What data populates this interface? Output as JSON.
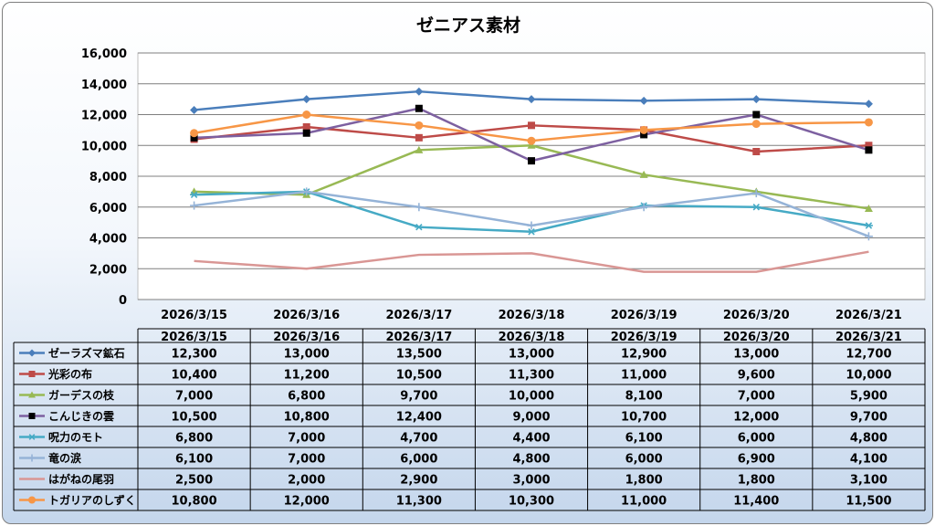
{
  "chart_data": {
    "type": "line",
    "title": "ゼニアス素材",
    "categories": [
      "2026/3/15",
      "2026/3/16",
      "2026/3/17",
      "2026/3/18",
      "2026/3/19",
      "2026/3/20",
      "2026/3/21"
    ],
    "ylim": [
      0,
      16000
    ],
    "yticks": [
      0,
      2000,
      4000,
      6000,
      8000,
      10000,
      12000,
      14000,
      16000
    ],
    "ytick_labels": [
      "0",
      "2,000",
      "4,000",
      "6,000",
      "8,000",
      "10,000",
      "12,000",
      "14,000",
      "16,000"
    ],
    "grid": true,
    "legend": "data-table",
    "series": [
      {
        "name": "ゼーラズマ鉱石",
        "color": "#4a7ebb",
        "marker": "diamond",
        "values": [
          12300,
          13000,
          13500,
          13000,
          12900,
          13000,
          12700
        ],
        "labels": [
          "12,300",
          "13,000",
          "13,500",
          "13,000",
          "12,900",
          "13,000",
          "12,700"
        ]
      },
      {
        "name": "光彩の布",
        "color": "#be4b48",
        "marker": "square",
        "values": [
          10400,
          11200,
          10500,
          11300,
          11000,
          9600,
          10000
        ],
        "labels": [
          "10,400",
          "11,200",
          "10,500",
          "11,300",
          "11,000",
          "9,600",
          "10,000"
        ]
      },
      {
        "name": "ガーデスの枝",
        "color": "#98b954",
        "marker": "triangle",
        "values": [
          7000,
          6800,
          9700,
          10000,
          8100,
          7000,
          5900
        ],
        "labels": [
          "7,000",
          "6,800",
          "9,700",
          "10,000",
          "8,100",
          "7,000",
          "5,900"
        ]
      },
      {
        "name": "こんじきの雲",
        "color": "#7d60a0",
        "marker": "square-black",
        "values": [
          10500,
          10800,
          12400,
          9000,
          10700,
          12000,
          9700
        ],
        "labels": [
          "10,500",
          "10,800",
          "12,400",
          "9,000",
          "10,700",
          "12,000",
          "9,700"
        ]
      },
      {
        "name": "呪力のモト",
        "color": "#46aac5",
        "marker": "star",
        "values": [
          6800,
          7000,
          4700,
          4400,
          6100,
          6000,
          4800
        ],
        "labels": [
          "6,800",
          "7,000",
          "4,700",
          "4,400",
          "6,100",
          "6,000",
          "4,800"
        ]
      },
      {
        "name": "竜の涙",
        "color": "#95b3d7",
        "marker": "plus",
        "values": [
          6100,
          7000,
          6000,
          4800,
          6000,
          6900,
          4100
        ],
        "labels": [
          "6,100",
          "7,000",
          "6,000",
          "4,800",
          "6,000",
          "6,900",
          "4,100"
        ]
      },
      {
        "name": "はがねの尾羽",
        "color": "#d99694",
        "marker": "none",
        "values": [
          2500,
          2000,
          2900,
          3000,
          1800,
          1800,
          3100
        ],
        "labels": [
          "2,500",
          "2,000",
          "2,900",
          "3,000",
          "1,800",
          "1,800",
          "3,100"
        ]
      },
      {
        "name": "トガリアのしずく",
        "color": "#f79646",
        "marker": "circle",
        "values": [
          10800,
          12000,
          11300,
          10300,
          11000,
          11400,
          11500
        ],
        "labels": [
          "10,800",
          "12,000",
          "11,300",
          "10,300",
          "11,000",
          "11,400",
          "11,500"
        ]
      }
    ]
  }
}
